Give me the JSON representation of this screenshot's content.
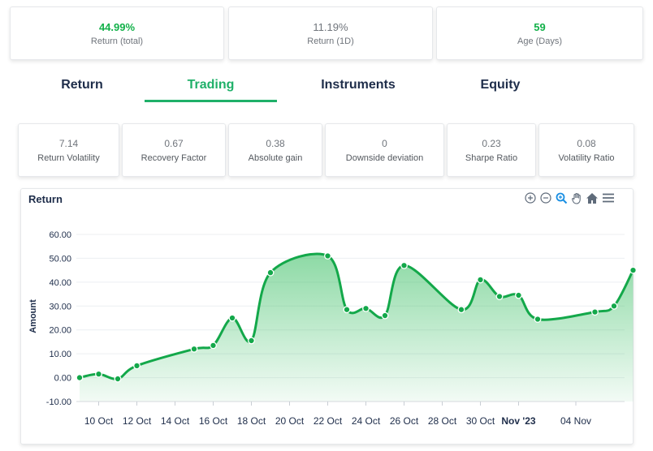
{
  "stats": [
    {
      "value": "44.99%",
      "label": "Return (total)",
      "highlight": true
    },
    {
      "value": "11.19%",
      "label": "Return (1D)",
      "highlight": false
    },
    {
      "value": "59",
      "label": "Age (Days)",
      "highlight": true
    }
  ],
  "tabs": [
    "Return",
    "Trading",
    "Instruments",
    "Equity"
  ],
  "active_tab": "Trading",
  "metrics": [
    {
      "value": "7.14",
      "label": "Return Volatility"
    },
    {
      "value": "0.67",
      "label": "Recovery Factor"
    },
    {
      "value": "0.38",
      "label": "Absolute gain"
    },
    {
      "value": "0",
      "label": "Downside deviation"
    },
    {
      "value": "0.23",
      "label": "Sharpe Ratio"
    },
    {
      "value": "0.08",
      "label": "Volatility Ratio"
    }
  ],
  "toolbar_icons": [
    "zoom-in-icon",
    "zoom-out-icon",
    "selection-zoom-icon",
    "pan-hand-icon",
    "home-reset-icon",
    "menu-icon"
  ],
  "colors": {
    "accent": "#1fb069",
    "line": "#13a84a",
    "text": "#1e2d4a"
  },
  "chart_data": {
    "type": "area",
    "title": "Return",
    "ylabel": "Amount",
    "xlabel": "",
    "ylim": [
      -10,
      60
    ],
    "yticks": [
      "60.00",
      "50.00",
      "40.00",
      "30.00",
      "20.00",
      "10.00",
      "0.00",
      "-10.00"
    ],
    "ytick_values": [
      60,
      50,
      40,
      30,
      20,
      10,
      0,
      -10
    ],
    "xticks": [
      "10 Oct",
      "12 Oct",
      "14 Oct",
      "16 Oct",
      "18 Oct",
      "20 Oct",
      "22 Oct",
      "24 Oct",
      "26 Oct",
      "28 Oct",
      "30 Oct",
      "Nov '23",
      "04 Nov"
    ],
    "xtick_dates": [
      "2023-10-10",
      "2023-10-12",
      "2023-10-14",
      "2023-10-16",
      "2023-10-18",
      "2023-10-20",
      "2023-10-22",
      "2023-10-24",
      "2023-10-26",
      "2023-10-28",
      "2023-10-30",
      "2023-11-01",
      "2023-11-04"
    ],
    "grid": true,
    "series": [
      {
        "points": [
          {
            "x": "2023-10-09",
            "y": 0.0
          },
          {
            "x": "2023-10-10",
            "y": 1.5
          },
          {
            "x": "2023-10-11",
            "y": -0.5
          },
          {
            "x": "2023-10-12",
            "y": 5.0
          },
          {
            "x": "2023-10-15",
            "y": 12.0
          },
          {
            "x": "2023-10-16",
            "y": 13.5
          },
          {
            "x": "2023-10-17",
            "y": 25.0
          },
          {
            "x": "2023-10-18",
            "y": 15.5
          },
          {
            "x": "2023-10-19",
            "y": 44.0
          },
          {
            "x": "2023-10-22",
            "y": 51.0
          },
          {
            "x": "2023-10-23",
            "y": 28.5
          },
          {
            "x": "2023-10-24",
            "y": 29.0
          },
          {
            "x": "2023-10-25",
            "y": 26.0
          },
          {
            "x": "2023-10-26",
            "y": 47.0
          },
          {
            "x": "2023-10-29",
            "y": 28.5
          },
          {
            "x": "2023-10-30",
            "y": 41.0
          },
          {
            "x": "2023-10-31",
            "y": 34.0
          },
          {
            "x": "2023-11-01",
            "y": 34.5
          },
          {
            "x": "2023-11-02",
            "y": 24.5
          },
          {
            "x": "2023-11-05",
            "y": 27.5
          },
          {
            "x": "2023-11-06",
            "y": 30.0
          },
          {
            "x": "2023-11-07",
            "y": 45.0
          }
        ]
      }
    ]
  }
}
